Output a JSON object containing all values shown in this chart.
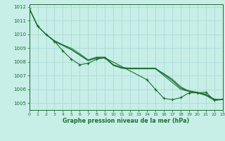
{
  "title": "Graphe pression niveau de la mer (hPa)",
  "background_color": "#c8eee8",
  "grid_color": "#b0ddd8",
  "line_color": "#1a6e2e",
  "xlim": [
    0,
    23
  ],
  "ylim": [
    1004.5,
    1012.2
  ],
  "yticks": [
    1005,
    1006,
    1007,
    1008,
    1009,
    1010,
    1011,
    1012
  ],
  "xticks": [
    0,
    1,
    2,
    3,
    4,
    5,
    6,
    7,
    8,
    9,
    10,
    11,
    12,
    13,
    14,
    15,
    16,
    17,
    18,
    19,
    20,
    21,
    22,
    23
  ],
  "marker_line": [
    1011.9,
    1010.6,
    1010.0,
    1009.5,
    1008.8,
    1008.2,
    1007.8,
    1007.9,
    1008.2,
    1008.3,
    1006.7,
    1006.0,
    1005.35,
    1005.25,
    1005.4,
    1005.75,
    1005.75,
    1005.8,
    1005.2,
    1005.3
  ],
  "marker_x": [
    0,
    1,
    2,
    3,
    4,
    5,
    6,
    7,
    8,
    9,
    14,
    15,
    16,
    17,
    18,
    19,
    20,
    21,
    22,
    23
  ],
  "smooth_lines": [
    [
      1011.9,
      1010.6,
      1010.0,
      1009.5,
      1009.2,
      1008.9,
      1008.5,
      1008.1,
      1008.3,
      1008.3,
      1007.75,
      1007.55,
      1007.5,
      1007.5,
      1007.5,
      1007.5,
      1007.15,
      1006.75,
      1006.2,
      1005.85,
      1005.75,
      1005.6,
      1005.3,
      1005.25
    ],
    [
      1011.9,
      1010.6,
      1010.0,
      1009.5,
      1009.2,
      1008.9,
      1008.5,
      1008.1,
      1008.3,
      1008.3,
      1007.75,
      1007.55,
      1007.5,
      1007.5,
      1007.5,
      1007.5,
      1007.1,
      1006.65,
      1006.1,
      1005.9,
      1005.8,
      1005.65,
      1005.25,
      1005.25
    ],
    [
      1011.9,
      1010.6,
      1010.0,
      1009.5,
      1009.2,
      1008.9,
      1008.5,
      1008.1,
      1008.3,
      1008.3,
      1007.75,
      1007.55,
      1007.5,
      1007.5,
      1007.5,
      1007.5,
      1007.0,
      1006.5,
      1006.0,
      1005.85,
      1005.75,
      1005.55,
      1005.2,
      1005.25
    ],
    [
      1011.9,
      1010.6,
      1010.0,
      1009.55,
      1009.25,
      1009.0,
      1008.6,
      1008.15,
      1008.35,
      1008.35,
      1007.8,
      1007.6,
      1007.55,
      1007.55,
      1007.55,
      1007.55,
      1007.1,
      1006.65,
      1006.1,
      1005.85,
      1005.75,
      1005.6,
      1005.25,
      1005.25
    ]
  ]
}
